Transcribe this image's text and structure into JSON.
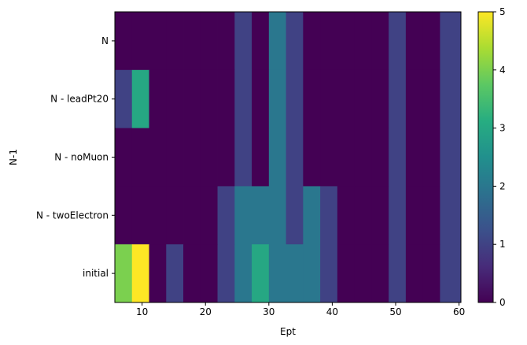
{
  "chart_data": {
    "type": "heatmap",
    "xlabel": "Ept",
    "ylabel": "N-1",
    "xlim": [
      5.7,
      60.3
    ],
    "x_ticks": [
      10,
      20,
      30,
      40,
      50,
      60
    ],
    "x_tick_labels": [
      "10",
      "20",
      "30",
      "40",
      "50",
      "60"
    ],
    "rows": [
      "N",
      "N - leadPt20",
      "N - noMuon",
      "N - twoElectron",
      "initial"
    ],
    "bin_edges": [
      5.7,
      8.4,
      11.1,
      13.8,
      16.5,
      19.2,
      21.9,
      24.6,
      27.3,
      30.0,
      32.7,
      35.4,
      38.1,
      40.8,
      43.5,
      46.2,
      48.9,
      51.6,
      54.3,
      57.0,
      59.7,
      60.3
    ],
    "values": [
      [
        0,
        0,
        0,
        0,
        0,
        0,
        0,
        1,
        0,
        2,
        1,
        0,
        0,
        0,
        0,
        0,
        1,
        0,
        0,
        1,
        1
      ],
      [
        1,
        3,
        0,
        0,
        0,
        0,
        0,
        1,
        0,
        2,
        1,
        0,
        0,
        0,
        0,
        0,
        1,
        0,
        0,
        1,
        1
      ],
      [
        0,
        0,
        0,
        0,
        0,
        0,
        0,
        1,
        0,
        2,
        1,
        0,
        0,
        0,
        0,
        0,
        1,
        0,
        0,
        1,
        1
      ],
      [
        0,
        0,
        0,
        0,
        0,
        0,
        1,
        2,
        2,
        2,
        1,
        2,
        1,
        0,
        0,
        0,
        1,
        0,
        0,
        1,
        1
      ],
      [
        4,
        5,
        0,
        1,
        0,
        0,
        1,
        2,
        3,
        2,
        2,
        2,
        1,
        0,
        0,
        0,
        1,
        0,
        0,
        1,
        1
      ]
    ],
    "colorbar": {
      "colormap": "viridis",
      "range": [
        0,
        5
      ],
      "ticks": [
        0,
        1,
        2,
        3,
        4,
        5
      ],
      "tick_labels": [
        "0",
        "1",
        "2",
        "3",
        "4",
        "5"
      ]
    }
  }
}
